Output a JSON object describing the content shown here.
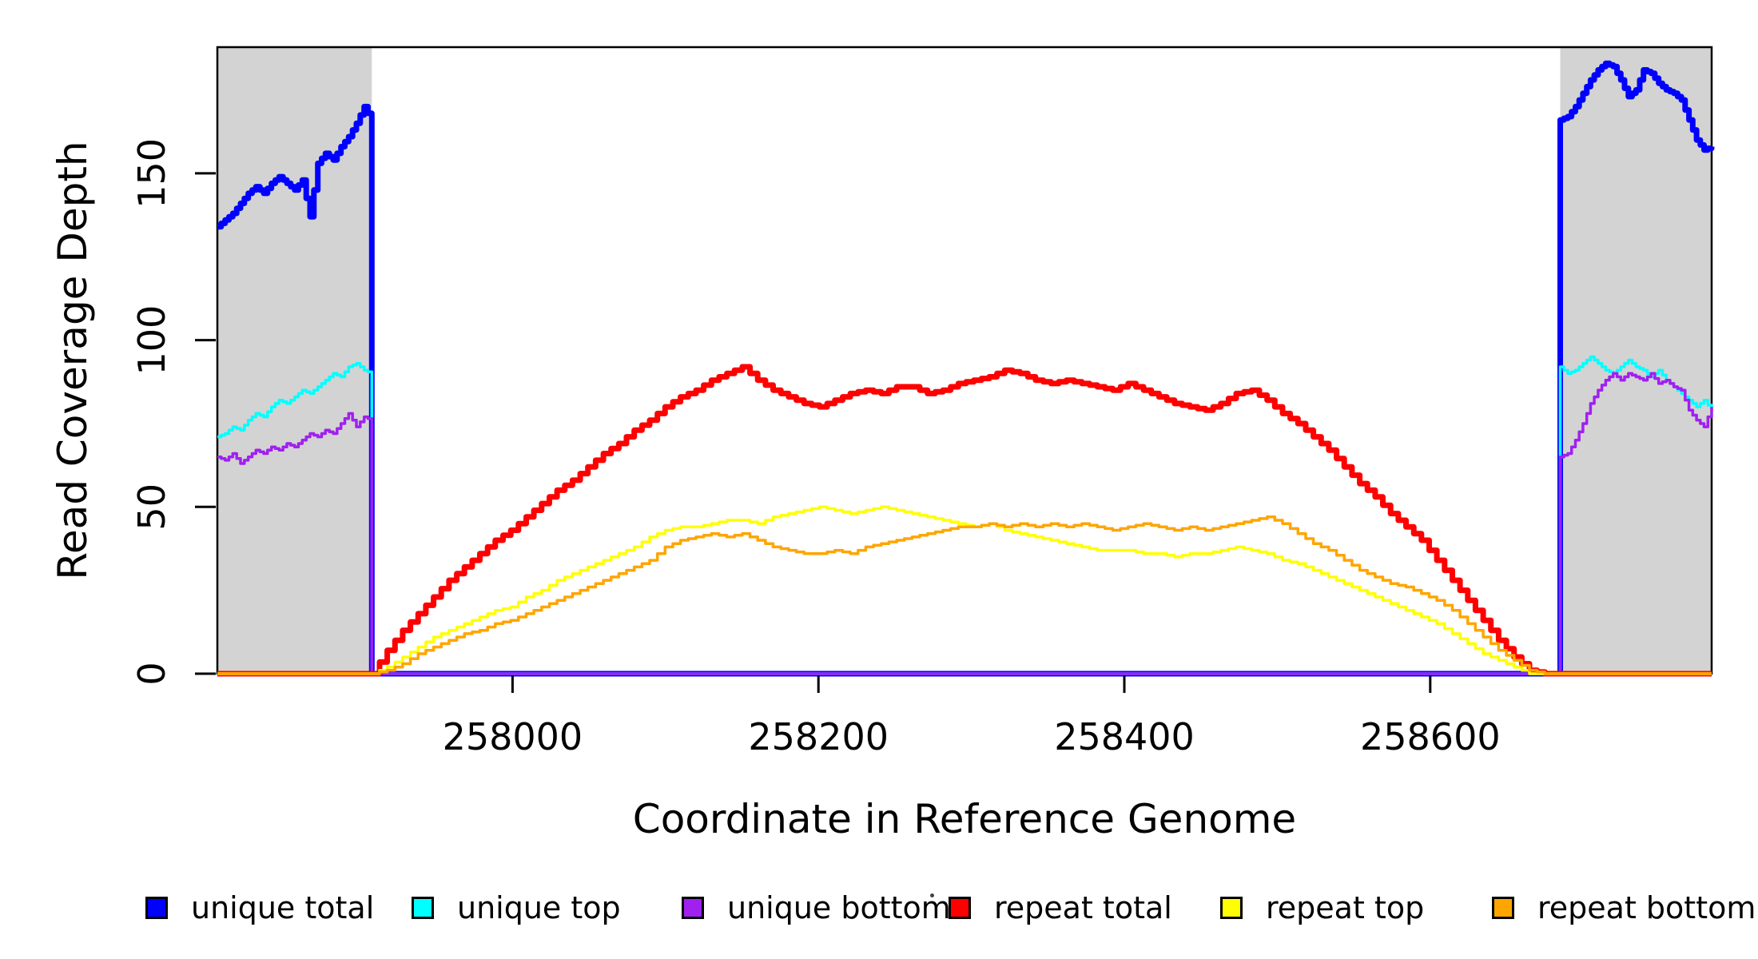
{
  "figure": {
    "background": "#ffffff",
    "plot_border_color": "#000000"
  },
  "x_axis": {
    "label": "Coordinate in Reference Genome",
    "tick_labels": [
      "258000",
      "258200",
      "258400",
      "258600"
    ]
  },
  "y_axis": {
    "label": "Read Coverage Depth",
    "tick_labels": [
      "0",
      "50",
      "100",
      "150"
    ]
  },
  "legend": {
    "items": [
      {
        "label": "unique total",
        "color": "#0000FF"
      },
      {
        "label": "unique top",
        "color": "#00FFFF"
      },
      {
        "label": "unique bottom",
        "color": "#A020F0"
      },
      {
        "label": "repeat total",
        "color": "#FF0000"
      },
      {
        "label": "repeat top",
        "color": "#FFFF00"
      },
      {
        "label": "repeat bottom",
        "color": "#FFA500"
      }
    ]
  },
  "chart_data": {
    "type": "line",
    "title": "",
    "xlabel": "Coordinate in Reference Genome",
    "ylabel": "Read Coverage Depth",
    "xlim": [
      257807,
      258784
    ],
    "ylim": [
      0,
      187
    ],
    "x_ticks": [
      258000,
      258200,
      258400,
      258600
    ],
    "y_ticks": [
      0,
      50,
      100,
      150
    ],
    "grid": false,
    "legend_position": "bottom",
    "shade_color": "#D3D3D3",
    "shaded_regions": [
      [
        257807,
        257908
      ],
      [
        258685,
        258784
      ]
    ],
    "series": [
      {
        "name": "unique total",
        "color": "#0000FF",
        "width": 7,
        "pre_zero": false,
        "post_zero": false,
        "segments": [
          {
            "x0": 257807,
            "dx": 5.05,
            "values": [
              134,
              136,
              138,
              141,
              144,
              146,
              144,
              147,
              149,
              147,
              145,
              148,
              137,
              153,
              156,
              154,
              158,
              161,
              165,
              170,
              166
            ]
          },
          {
            "x0": 258685,
            "dx": 4.95,
            "values": [
              166,
              167,
              170,
              174,
              178,
              181,
              183,
              182,
              178,
              173,
              175,
              181,
              180,
              177,
              175,
              174,
              172,
              166,
              160,
              157,
              158
            ]
          }
        ]
      },
      {
        "name": "unique top",
        "color": "#00FFFF",
        "width": 3.5,
        "pre_zero": false,
        "post_zero": false,
        "segments": [
          {
            "x0": 257807,
            "dx": 5.05,
            "values": [
              71,
              72,
              74,
              73,
              76,
              78,
              77,
              80,
              82,
              81,
              83,
              85,
              84,
              86,
              88,
              90,
              89,
              92,
              93,
              91,
              90
            ]
          },
          {
            "x0": 258685,
            "dx": 4.95,
            "values": [
              92,
              90,
              91,
              93,
              95,
              93,
              91,
              90,
              92,
              94,
              92,
              91,
              89,
              91,
              88,
              86,
              84,
              82,
              80,
              82,
              79
            ]
          }
        ]
      },
      {
        "name": "unique bottom",
        "color": "#A020F0",
        "width": 3.5,
        "pre_zero": false,
        "post_zero": false,
        "segments": [
          {
            "x0": 257807,
            "dx": 5.05,
            "values": [
              65,
              64,
              66,
              63,
              65,
              67,
              66,
              68,
              67,
              69,
              68,
              70,
              72,
              71,
              73,
              72,
              75,
              78,
              74,
              77,
              76
            ]
          },
          {
            "x0": 258685,
            "dx": 4.95,
            "values": [
              65,
              66,
              70,
              75,
              81,
              85,
              88,
              90,
              88,
              90,
              89,
              88,
              90,
              87,
              88,
              86,
              85,
              79,
              76,
              74,
              80
            ]
          }
        ]
      },
      {
        "name": "repeat total",
        "color": "#FF0000",
        "width": 7,
        "pre_zero": true,
        "post_zero": true,
        "segments": [
          {
            "x0": 257908,
            "dx": 10.092,
            "values": [
              0,
              7,
              13,
              18,
              23,
              28,
              32,
              36,
              40,
              43,
              47,
              51,
              55,
              58,
              62,
              66,
              69,
              73,
              76,
              80,
              83,
              85,
              88,
              90,
              92,
              88,
              85,
              83,
              81,
              80,
              82,
              84,
              85,
              84,
              86,
              86,
              84,
              85,
              87,
              88,
              89,
              91,
              90,
              88,
              87,
              88,
              87,
              86,
              85,
              87,
              85,
              83,
              81,
              80,
              79,
              81,
              84,
              85,
              82,
              78,
              75,
              71,
              67,
              62,
              57,
              53,
              48,
              44,
              40,
              34,
              28,
              22,
              16,
              10,
              5,
              1,
              0
            ]
          }
        ]
      },
      {
        "name": "repeat top",
        "color": "#FFFF00",
        "width": 3.5,
        "pre_zero": true,
        "post_zero": true,
        "segments": [
          {
            "x0": 257908,
            "dx": 10.092,
            "values": [
              0,
              2,
              5,
              8,
              11,
              13,
              15,
              17,
              19,
              20,
              23,
              25,
              28,
              30,
              32,
              34,
              36,
              38,
              41,
              43,
              44,
              44,
              45,
              46,
              46,
              45,
              47,
              48,
              49,
              50,
              49,
              48,
              49,
              50,
              49,
              48,
              47,
              46,
              45,
              44,
              45,
              43,
              42,
              41,
              40,
              39,
              38,
              37,
              37,
              37,
              36,
              36,
              35,
              36,
              36,
              37,
              38,
              37,
              36,
              34,
              33,
              31,
              29,
              27,
              25,
              23,
              21,
              19,
              17,
              15,
              12,
              9,
              6,
              4,
              2,
              0,
              0
            ]
          }
        ]
      },
      {
        "name": "repeat bottom",
        "color": "#FFA500",
        "width": 3.5,
        "pre_zero": true,
        "post_zero": true,
        "segments": [
          {
            "x0": 257908,
            "dx": 10.092,
            "values": [
              0,
              1,
              3,
              6,
              8,
              10,
              12,
              13,
              15,
              16,
              18,
              20,
              22,
              24,
              26,
              28,
              30,
              32,
              34,
              38,
              40,
              41,
              42,
              41,
              42,
              40,
              38,
              37,
              36,
              36,
              37,
              36,
              38,
              39,
              40,
              41,
              42,
              43,
              44,
              44,
              45,
              44,
              45,
              44,
              45,
              44,
              45,
              44,
              43,
              44,
              45,
              44,
              43,
              44,
              43,
              44,
              45,
              46,
              47,
              45,
              42,
              39,
              37,
              34,
              31,
              29,
              27,
              26,
              24,
              22,
              19,
              15,
              11,
              7,
              4,
              1,
              0
            ]
          }
        ]
      }
    ]
  }
}
